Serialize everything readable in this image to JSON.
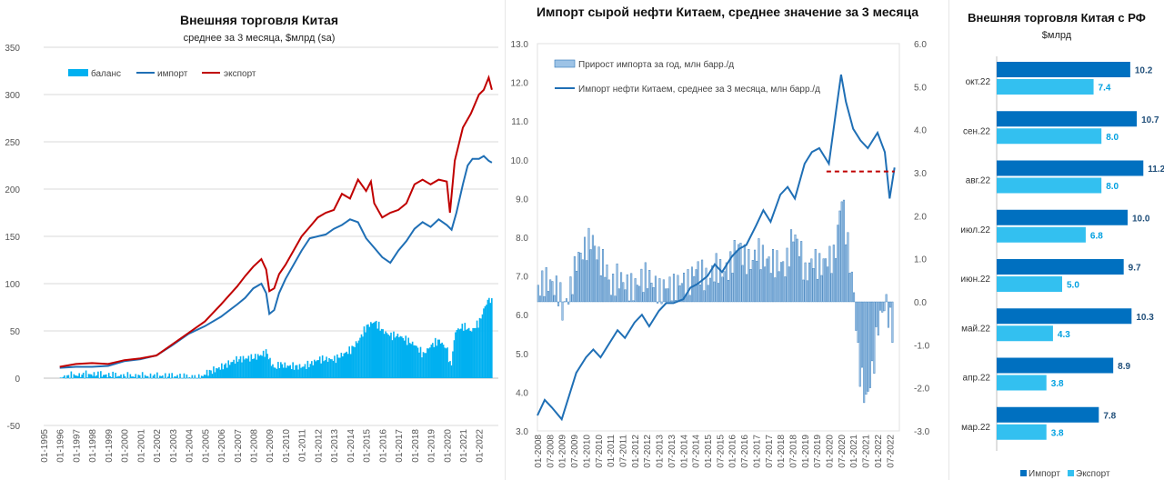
{
  "colors": {
    "import_blue": "#1f6fb5",
    "export_red": "#c00000",
    "balance_cyan": "#00b0f0",
    "growth_bar": "#9dc3e6",
    "growth_bar_edge": "#2e75b6",
    "rf_import": "#0070c0",
    "rf_export": "#33c0f0",
    "grid": "#d9d9d9"
  },
  "chart_data": [
    {
      "type": "line",
      "title": "Внешняя торговля Китая",
      "subtitle": "среднее за 3 месяца, $млрд (sa)",
      "ylim": [
        -50,
        350
      ],
      "yticks": [
        -50,
        0,
        50,
        100,
        150,
        200,
        250,
        300,
        350
      ],
      "xlim": [
        1995,
        2023.2
      ],
      "xticks": [
        "01-1995",
        "01-1996",
        "01-1997",
        "01-1998",
        "01-1999",
        "01-2000",
        "01-2001",
        "01-2002",
        "01-2003",
        "01-2004",
        "01-2005",
        "01-2006",
        "01-2007",
        "01-2008",
        "01-2009",
        "01-2010",
        "01-2011",
        "01-2012",
        "01-2013",
        "01-2014",
        "01-2015",
        "01-2016",
        "01-2017",
        "01-2018",
        "01-2019",
        "01-2020",
        "01-2021",
        "01-2022"
      ],
      "legend": "top-left",
      "grid": "horizontal",
      "series": [
        {
          "name": "баланс",
          "kind": "area",
          "x": [
            1996.0,
            1997.0,
            1998.0,
            1999.0,
            2000.0,
            2001.0,
            2002.0,
            2003.0,
            2004.0,
            2004.7,
            2005.0,
            2006.0,
            2007.0,
            2008.0,
            2008.5,
            2008.8,
            2009.0,
            2009.3,
            2009.6,
            2010.0,
            2011.0,
            2011.5,
            2012.0,
            2013.0,
            2014.0,
            2014.5,
            2015.0,
            2015.5,
            2016.0,
            2016.5,
            2017.0,
            2018.0,
            2018.5,
            2019.0,
            2019.5,
            2020.0,
            2020.2,
            2020.5,
            2021.0,
            2021.5,
            2022.0,
            2022.3,
            2022.6,
            2022.8
          ],
          "y": [
            1,
            3,
            4,
            3,
            2,
            2,
            2,
            2,
            1,
            0,
            5,
            12,
            20,
            22,
            25,
            28,
            18,
            10,
            15,
            13,
            12,
            15,
            20,
            20,
            30,
            40,
            55,
            60,
            50,
            45,
            45,
            35,
            25,
            35,
            40,
            30,
            10,
            50,
            55,
            50,
            60,
            75,
            85,
            78
          ]
        },
        {
          "name": "импорт",
          "x": [
            1996.0,
            1997.0,
            1998.0,
            1999.0,
            2000.0,
            2001.0,
            2002.0,
            2003.0,
            2004.0,
            2005.0,
            2006.0,
            2007.0,
            2007.5,
            2008.0,
            2008.5,
            2008.8,
            2009.0,
            2009.3,
            2009.6,
            2010.0,
            2011.0,
            2011.5,
            2012.0,
            2012.5,
            2013.0,
            2013.5,
            2014.0,
            2014.5,
            2015.0,
            2015.5,
            2016.0,
            2016.5,
            2017.0,
            2017.5,
            2018.0,
            2018.5,
            2019.0,
            2019.5,
            2020.0,
            2020.3,
            2020.6,
            2021.0,
            2021.3,
            2021.6,
            2022.0,
            2022.3,
            2022.6,
            2022.8
          ],
          "y": [
            11,
            12,
            12,
            13,
            18,
            20,
            24,
            35,
            47,
            55,
            65,
            78,
            85,
            95,
            100,
            90,
            68,
            72,
            90,
            105,
            135,
            148,
            150,
            152,
            158,
            162,
            168,
            165,
            148,
            138,
            128,
            122,
            135,
            145,
            158,
            165,
            160,
            168,
            162,
            157,
            175,
            205,
            225,
            232,
            232,
            235,
            230,
            228
          ]
        },
        {
          "name": "экспорт",
          "x": [
            1996.0,
            1997.0,
            1998.0,
            1999.0,
            2000.0,
            2001.0,
            2002.0,
            2003.0,
            2004.0,
            2005.0,
            2006.0,
            2007.0,
            2007.5,
            2008.0,
            2008.5,
            2008.8,
            2009.0,
            2009.3,
            2009.6,
            2010.0,
            2011.0,
            2011.5,
            2012.0,
            2012.5,
            2013.0,
            2013.5,
            2014.0,
            2014.5,
            2015.0,
            2015.3,
            2015.5,
            2016.0,
            2016.5,
            2017.0,
            2017.5,
            2018.0,
            2018.5,
            2019.0,
            2019.5,
            2020.0,
            2020.2,
            2020.5,
            2021.0,
            2021.5,
            2022.0,
            2022.3,
            2022.6,
            2022.8
          ],
          "y": [
            12,
            15,
            16,
            15,
            19,
            21,
            24,
            36,
            48,
            60,
            78,
            97,
            108,
            118,
            126,
            115,
            92,
            95,
            110,
            120,
            150,
            160,
            170,
            175,
            178,
            195,
            190,
            210,
            198,
            208,
            185,
            170,
            175,
            178,
            185,
            205,
            210,
            205,
            210,
            208,
            175,
            230,
            265,
            280,
            300,
            305,
            318,
            305
          ]
        }
      ]
    },
    {
      "type": "bar+line",
      "title": "Импорт сырой нефти Китаем, среднее значение за 3 месяца",
      "y_left_lim": [
        3.0,
        13.0
      ],
      "y_left_ticks": [
        "3.0",
        "4.0",
        "5.0",
        "6.0",
        "7.0",
        "8.0",
        "9.0",
        "10.0",
        "11.0",
        "12.0",
        "13.0"
      ],
      "y_right_lim": [
        -3.0,
        6.0
      ],
      "y_right_ticks": [
        "-3.0",
        "-2.0",
        "-1.0",
        "0.0",
        "1.0",
        "2.0",
        "3.0",
        "4.0",
        "5.0",
        "6.0"
      ],
      "xlim": [
        2008.0,
        2022.9
      ],
      "xticks": [
        "01-2008",
        "07-2008",
        "01-2009",
        "07-2009",
        "01-2010",
        "07-2010",
        "01-2011",
        "07-2011",
        "01-2012",
        "07-2012",
        "01-2013",
        "07-2013",
        "01-2014",
        "07-2014",
        "01-2015",
        "07-2015",
        "01-2016",
        "07-2016",
        "01-2017",
        "07-2017",
        "01-2018",
        "07-2018",
        "01-2019",
        "07-2019",
        "01-2020",
        "07-2020",
        "01-2021",
        "07-2021",
        "01-2022",
        "07-2022"
      ],
      "legend": "top-left",
      "series": [
        {
          "name": "Прирост импорта за год, млн барр./д",
          "axis": "right",
          "kind": "bar",
          "x": [
            2008.0,
            2008.3,
            2008.6,
            2008.9,
            2009.0,
            2009.3,
            2009.6,
            2009.9,
            2010.2,
            2010.5,
            2010.8,
            2011.0,
            2011.3,
            2011.6,
            2011.9,
            2012.2,
            2012.5,
            2012.8,
            2013.0,
            2013.3,
            2013.6,
            2013.9,
            2014.2,
            2014.5,
            2014.8,
            2015.0,
            2015.3,
            2015.6,
            2015.9,
            2016.2,
            2016.5,
            2016.8,
            2017.0,
            2017.3,
            2017.6,
            2017.9,
            2018.2,
            2018.5,
            2018.8,
            2019.0,
            2019.3,
            2019.6,
            2019.9,
            2020.2,
            2020.5,
            2020.7,
            2021.0,
            2021.2,
            2021.5,
            2021.8,
            2022.0,
            2022.3,
            2022.6
          ],
          "y": [
            0.3,
            0.5,
            0.4,
            0.2,
            -0.2,
            0.2,
            1.0,
            1.2,
            1.5,
            1.0,
            0.8,
            0.3,
            0.6,
            0.4,
            0.3,
            0.5,
            0.6,
            0.4,
            0.2,
            0.4,
            0.3,
            0.5,
            0.4,
            0.8,
            0.6,
            0.5,
            0.8,
            0.7,
            0.8,
            1.4,
            1.0,
            0.9,
            1.2,
            1.0,
            0.9,
            0.9,
            0.8,
            1.6,
            1.2,
            0.6,
            1.0,
            0.8,
            1.0,
            1.0,
            2.5,
            1.5,
            0.2,
            -1.5,
            -2.3,
            -1.5,
            -0.5,
            0.0,
            -0.7
          ]
        },
        {
          "name": "Импорт нефти Китаем, среднее за 3 месяца, млн барр./д",
          "axis": "left",
          "x": [
            2008.0,
            2008.3,
            2008.6,
            2009.0,
            2009.3,
            2009.6,
            2010.0,
            2010.3,
            2010.6,
            2011.0,
            2011.3,
            2011.6,
            2012.0,
            2012.3,
            2012.6,
            2013.0,
            2013.3,
            2013.6,
            2014.0,
            2014.3,
            2014.6,
            2015.0,
            2015.3,
            2015.6,
            2016.0,
            2016.3,
            2016.6,
            2017.0,
            2017.3,
            2017.6,
            2018.0,
            2018.3,
            2018.6,
            2019.0,
            2019.3,
            2019.6,
            2020.0,
            2020.3,
            2020.5,
            2020.7,
            2021.0,
            2021.3,
            2021.6,
            2022.0,
            2022.3,
            2022.5,
            2022.7
          ],
          "y": [
            3.4,
            3.8,
            3.6,
            3.3,
            3.9,
            4.5,
            4.9,
            5.1,
            4.9,
            5.3,
            5.6,
            5.4,
            5.8,
            6.0,
            5.7,
            6.1,
            6.3,
            6.3,
            6.4,
            6.7,
            6.8,
            7.0,
            7.3,
            7.1,
            7.5,
            7.7,
            7.8,
            8.3,
            8.7,
            8.4,
            9.1,
            9.3,
            9.0,
            9.9,
            10.2,
            10.3,
            9.9,
            11.3,
            12.2,
            11.5,
            10.8,
            10.5,
            10.3,
            10.7,
            10.2,
            9.0,
            9.8
          ]
        },
        {
          "name": "",
          "kind": "dashed",
          "axis": "left",
          "x": [
            2019.9,
            2022.7
          ],
          "y": [
            9.7,
            9.7
          ]
        }
      ]
    },
    {
      "type": "bar",
      "orientation": "horizontal",
      "title": "Внешняя торговля Китая с РФ",
      "subtitle": "$млрд",
      "categories": [
        "окт.22",
        "сен.22",
        "авг.22",
        "июл.22",
        "июн.22",
        "май.22",
        "апр.22",
        "мар.22"
      ],
      "xlim": [
        0,
        12.5
      ],
      "legend": "bottom",
      "series": [
        {
          "name": "Импорт",
          "values": [
            10.2,
            10.7,
            11.2,
            10.0,
            9.7,
            10.3,
            8.9,
            7.8
          ]
        },
        {
          "name": "Экспорт",
          "values": [
            7.4,
            8.0,
            8.0,
            6.8,
            5.0,
            4.3,
            3.8,
            3.8
          ]
        }
      ]
    }
  ]
}
